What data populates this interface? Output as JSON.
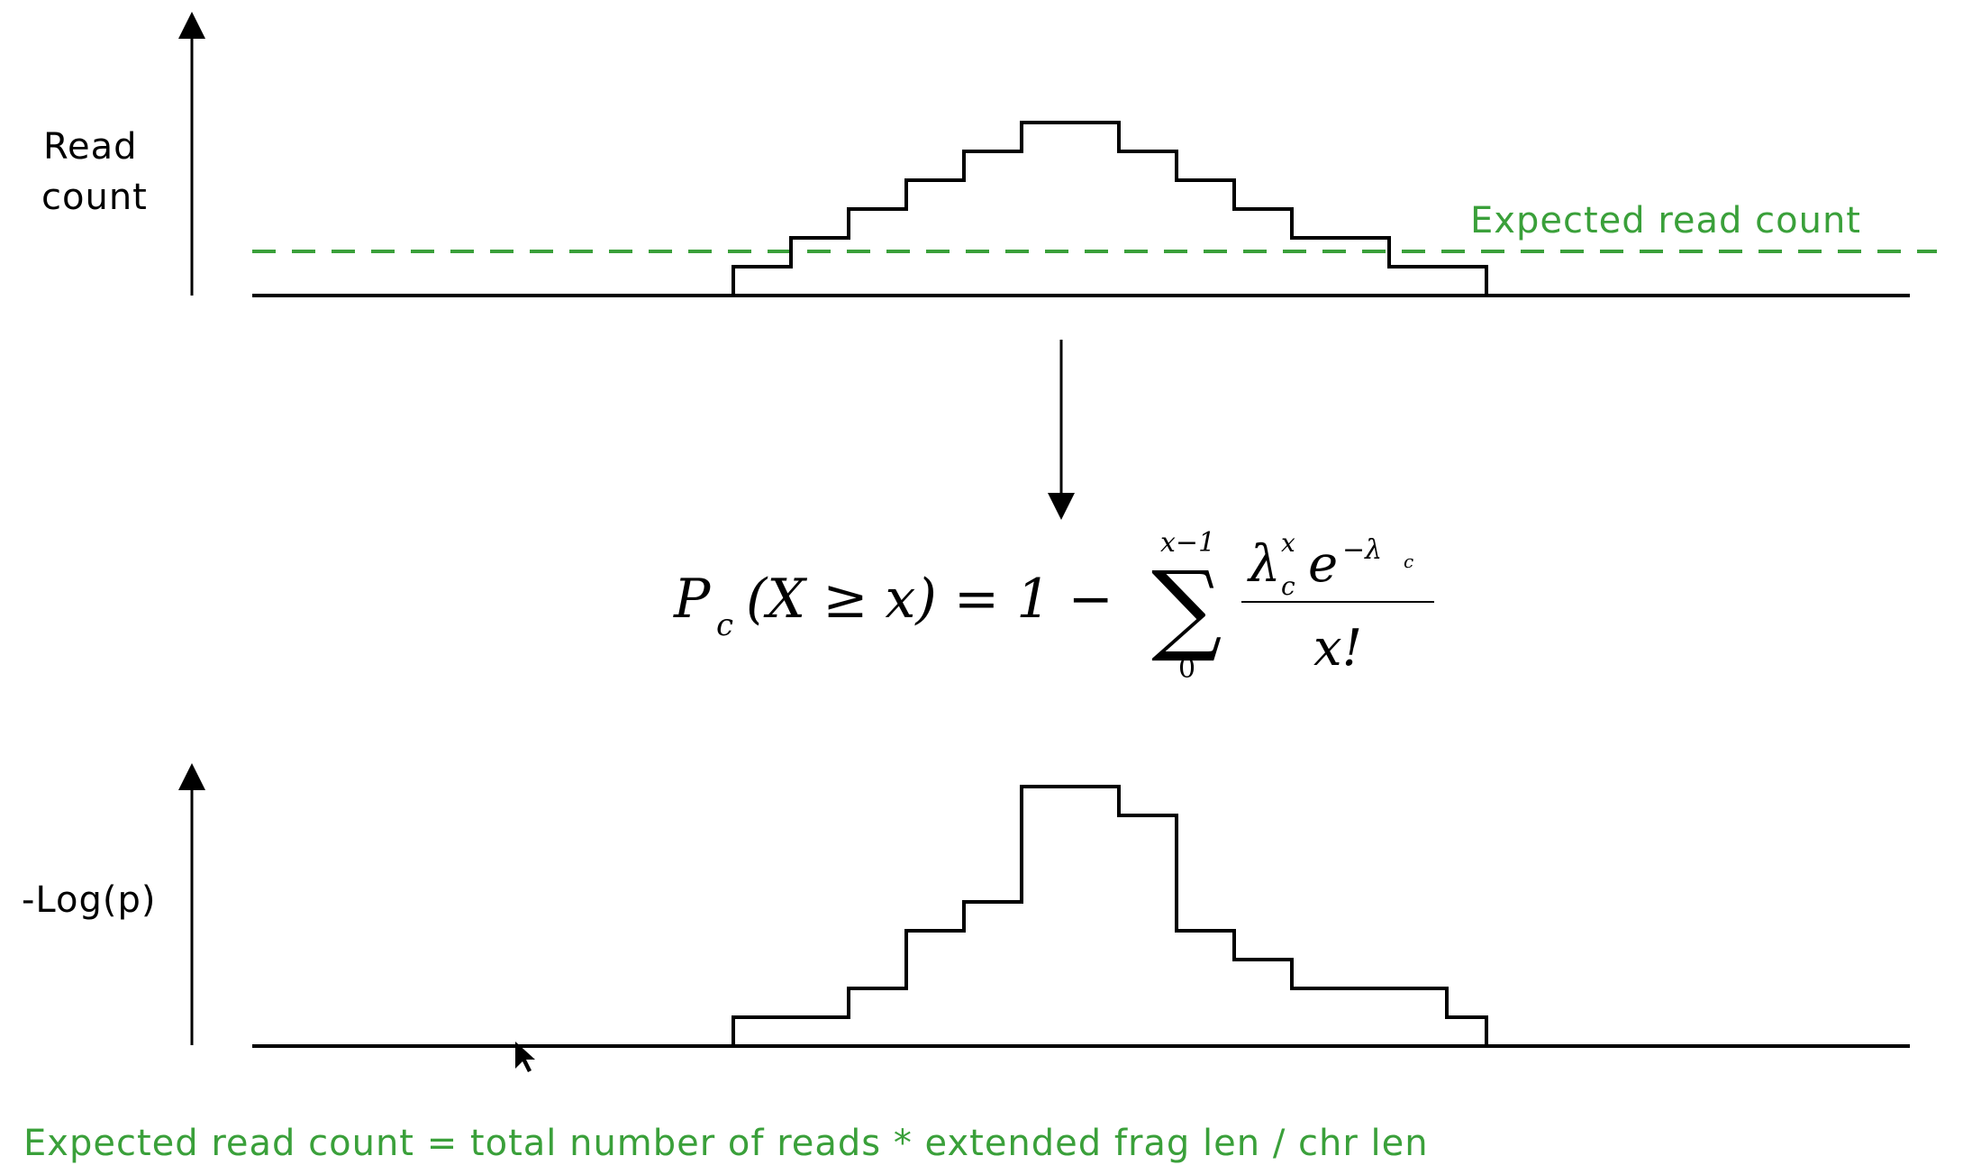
{
  "top_chart": {
    "y_label_line1": "Read",
    "y_label_line2": "count",
    "expected_label": "Expected read count",
    "expected_level": 1.5,
    "ymax": 6,
    "steps": [
      0,
      1,
      2,
      3,
      4,
      5,
      6,
      6,
      5,
      4,
      3,
      2,
      2,
      1,
      1,
      0
    ],
    "colors": {
      "signal": "#000000",
      "expected": "#3aa03a"
    }
  },
  "formula": {
    "P": "P",
    "P_sub": "c",
    "lhs": "(X ≥ x) = 1 −",
    "sigma": "∑",
    "sigma_upper": "x−1",
    "sigma_lower": "0",
    "numerator_lambda": "λ",
    "numerator_sup": "x",
    "numerator_sub": "c",
    "numerator_e": "e",
    "numerator_e_sup": "−λ",
    "numerator_e_sup_sub": "c",
    "denominator": "x!"
  },
  "bottom_chart": {
    "y_label": "-Log(p)",
    "ymax": 9,
    "steps": [
      0,
      1,
      1,
      2,
      4,
      5,
      9,
      9,
      8,
      4,
      3,
      2,
      2,
      2,
      1,
      0
    ],
    "colors": {
      "signal": "#000000"
    }
  },
  "footer": {
    "text": "Expected read count = total number of reads * extended frag len / chr len",
    "color": "#3aa03a"
  }
}
